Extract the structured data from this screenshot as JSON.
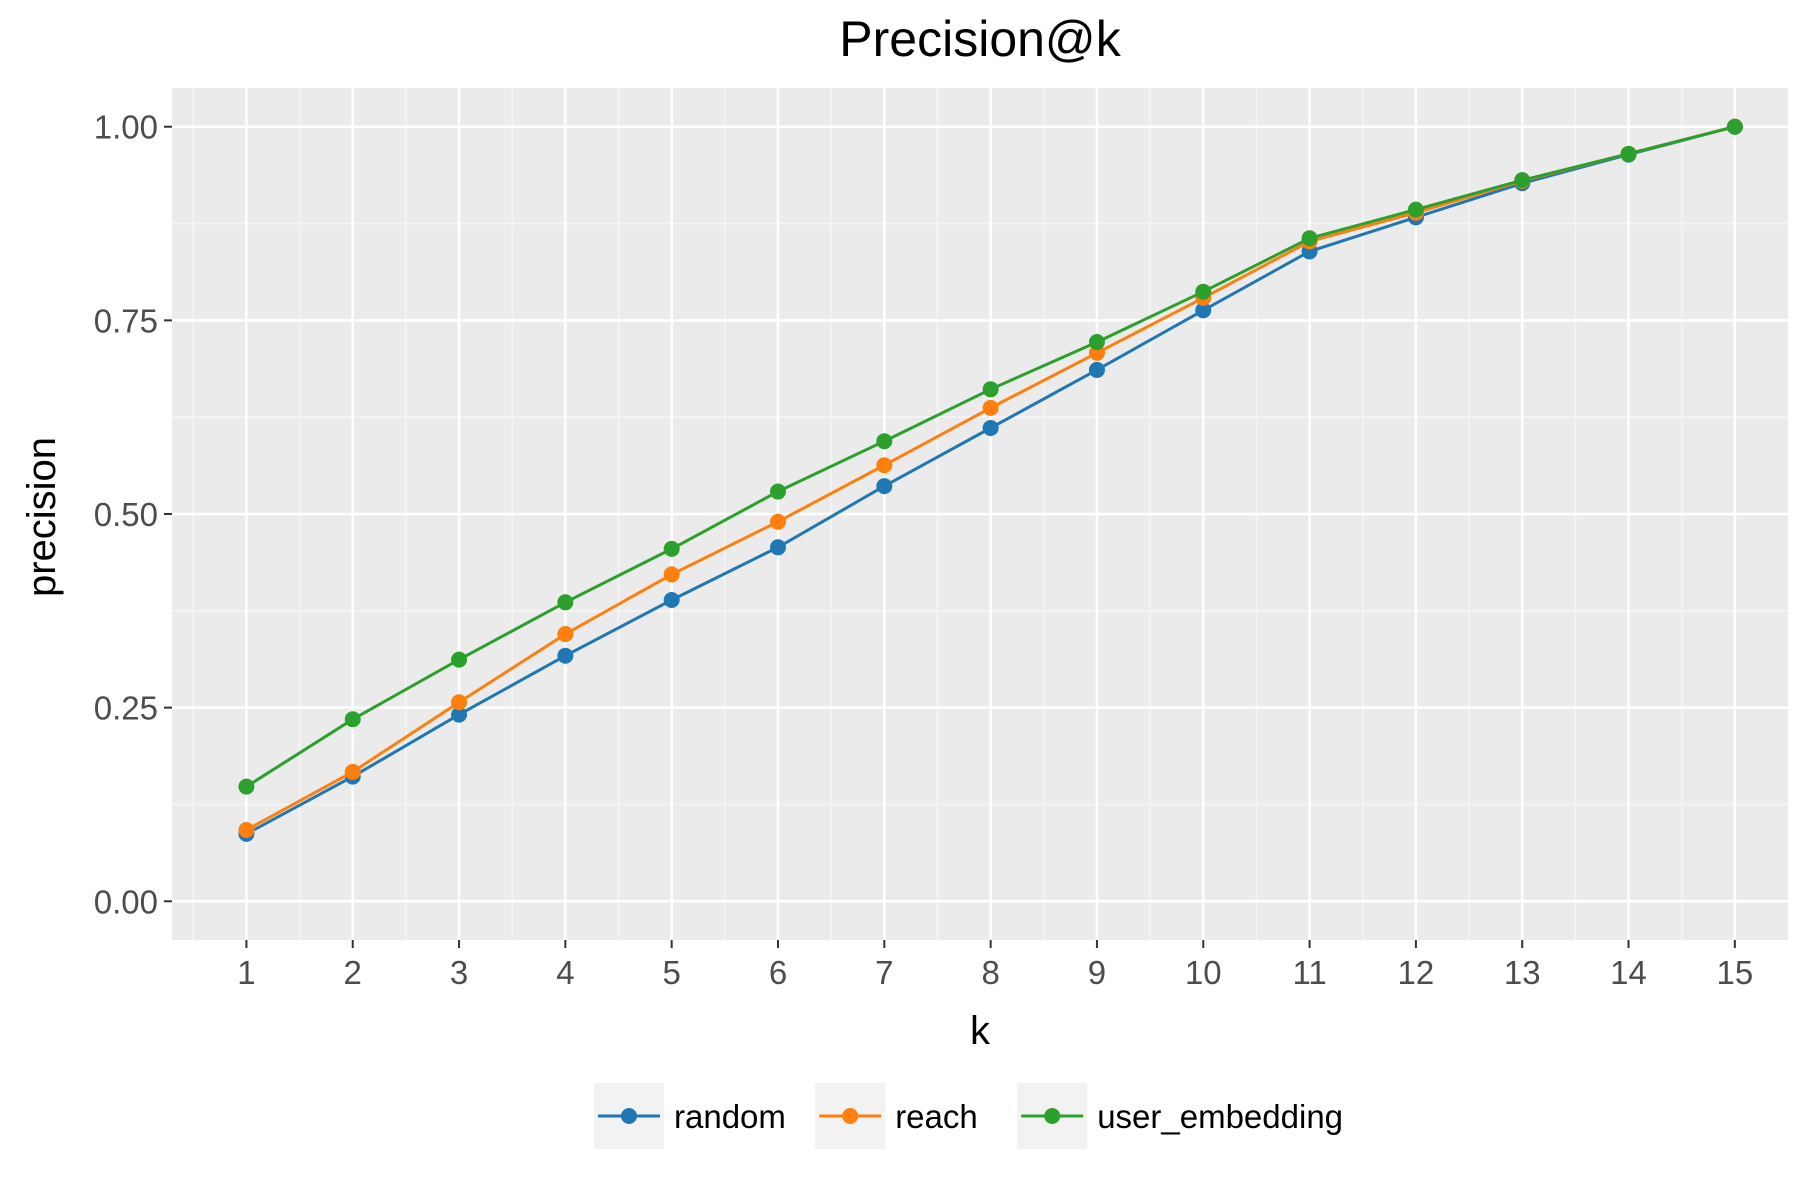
{
  "chart_data": {
    "type": "line",
    "title": "Precision@k",
    "xlabel": "k",
    "ylabel": "precision",
    "x": [
      1,
      2,
      3,
      4,
      5,
      6,
      7,
      8,
      9,
      10,
      11,
      12,
      13,
      14,
      15
    ],
    "x_tick_labels": [
      "1",
      "2",
      "3",
      "4",
      "5",
      "6",
      "7",
      "8",
      "9",
      "10",
      "11",
      "12",
      "13",
      "14",
      "15"
    ],
    "y_ticks": [
      0.0,
      0.25,
      0.5,
      0.75,
      1.0
    ],
    "y_tick_labels": [
      "0.00",
      "0.25",
      "0.50",
      "0.75",
      "1.00"
    ],
    "xlim": [
      0.3,
      15.5
    ],
    "ylim": [
      -0.05,
      1.05
    ],
    "grid": true,
    "legend_position": "bottom",
    "series": [
      {
        "name": "random",
        "color": "#1f77b4",
        "values": [
          0.087,
          0.161,
          0.241,
          0.317,
          0.389,
          0.457,
          0.536,
          0.611,
          0.686,
          0.763,
          0.839,
          0.883,
          0.927,
          0.964,
          1.0
        ]
      },
      {
        "name": "reach",
        "color": "#ff7f0e",
        "values": [
          0.092,
          0.167,
          0.257,
          0.345,
          0.422,
          0.49,
          0.563,
          0.637,
          0.708,
          0.779,
          0.852,
          0.889,
          0.93,
          0.965,
          1.0
        ]
      },
      {
        "name": "user_embedding",
        "color": "#2ca02c",
        "values": [
          0.148,
          0.235,
          0.312,
          0.386,
          0.455,
          0.529,
          0.594,
          0.661,
          0.722,
          0.787,
          0.856,
          0.893,
          0.931,
          0.965,
          1.0
        ]
      }
    ]
  },
  "colors": {
    "panel_background": "#ebebeb",
    "grid_major": "#ffffff",
    "grid_minor": "#f5f5f5",
    "tick_text": "#4d4d4d",
    "legend_key_background": "#f2f2f2"
  }
}
